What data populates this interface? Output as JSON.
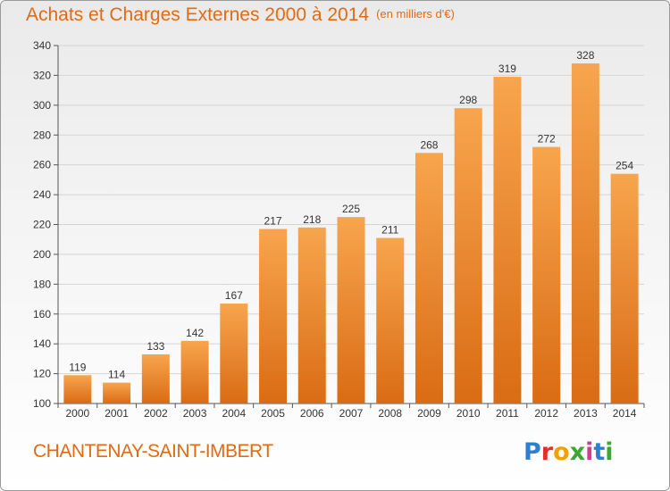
{
  "title": "Achats et Charges Externes 2000 à 2014",
  "unit": "(en milliers d'€)",
  "city": "CHANTENAY-SAINT-IMBERT",
  "logo": {
    "text": "Proxiti",
    "colors": [
      "#2e7fd0",
      "#e5302a",
      "#f2a100",
      "#3fa535",
      "#d53a8f",
      "#2e7fd0",
      "#3fa535"
    ]
  },
  "colors": {
    "accent": "#e06b14",
    "bar_top": "#f7a54e",
    "bar_bottom": "#d96c14"
  },
  "chart_data": {
    "type": "bar",
    "categories": [
      "2000",
      "2001",
      "2002",
      "2003",
      "2004",
      "2005",
      "2006",
      "2007",
      "2008",
      "2009",
      "2010",
      "2011",
      "2012",
      "2013",
      "2014"
    ],
    "values": [
      119,
      114,
      133,
      142,
      167,
      217,
      218,
      225,
      211,
      268,
      298,
      319,
      272,
      328,
      254
    ],
    "title": "Achats et Charges Externes 2000 à 2014",
    "ylim": [
      100,
      340
    ],
    "yticks": [
      100,
      120,
      140,
      160,
      180,
      200,
      220,
      240,
      260,
      280,
      300,
      320,
      340
    ],
    "grid": true,
    "legend": "none"
  }
}
